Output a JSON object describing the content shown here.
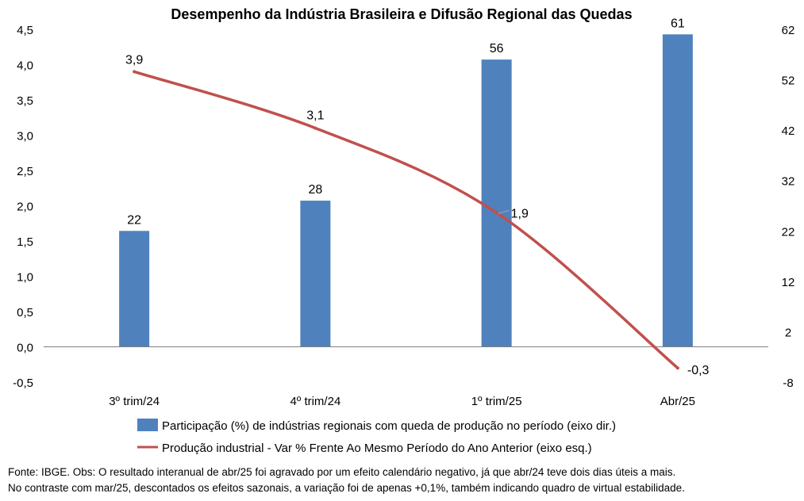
{
  "chart_data": {
    "type": "bar+line",
    "title": "Desempenho da Indústria Brasileira e Difusão Regional das Quedas",
    "categories": [
      "3º trim/24",
      "4º trim/24",
      "1º trim/25",
      "Abr/25"
    ],
    "series": [
      {
        "name": "Participação (%) de indústrias regionais com queda de produção no período (eixo dir.)",
        "type": "bar",
        "axis": "right",
        "values": [
          22,
          28,
          56,
          61
        ],
        "labels": [
          "22",
          "28",
          "56",
          "61"
        ]
      },
      {
        "name": "Produção industrial - Var % Frente Ao Mesmo Período do Ano Anterior (eixo esq.)",
        "type": "line",
        "axis": "left",
        "values": [
          3.9,
          3.1,
          1.9,
          -0.3
        ],
        "labels": [
          "3,9",
          "3,1",
          "1,9",
          "-0,3"
        ]
      }
    ],
    "left_axis": {
      "ylim": [
        -0.5,
        4.5
      ],
      "ticks": [
        "4,5",
        "4,0",
        "3,5",
        "3,0",
        "2,5",
        "2,0",
        "1,5",
        "1,0",
        "0,5",
        "0,0",
        "-0,5"
      ]
    },
    "right_axis": {
      "ylim": [
        -8,
        62
      ],
      "ticks": [
        "62",
        "52",
        "42",
        "32",
        "22",
        "12",
        "2",
        "-8"
      ]
    },
    "colors": {
      "bar": "#4F81BD",
      "line": "#C0504D",
      "axis": "#808080"
    },
    "grid": false,
    "legend_position": "bottom"
  },
  "footnote": {
    "line1": "Fonte: IBGE. Obs: O resultado interanual de abr/25 foi agravado por um efeito calendário negativo, já que abr/24 teve dois dias úteis a mais.",
    "line2": "No contraste com mar/25, descontados os efeitos sazonais, a variação foi de apenas +0,1%, também indicando quadro de virtual estabilidade."
  }
}
